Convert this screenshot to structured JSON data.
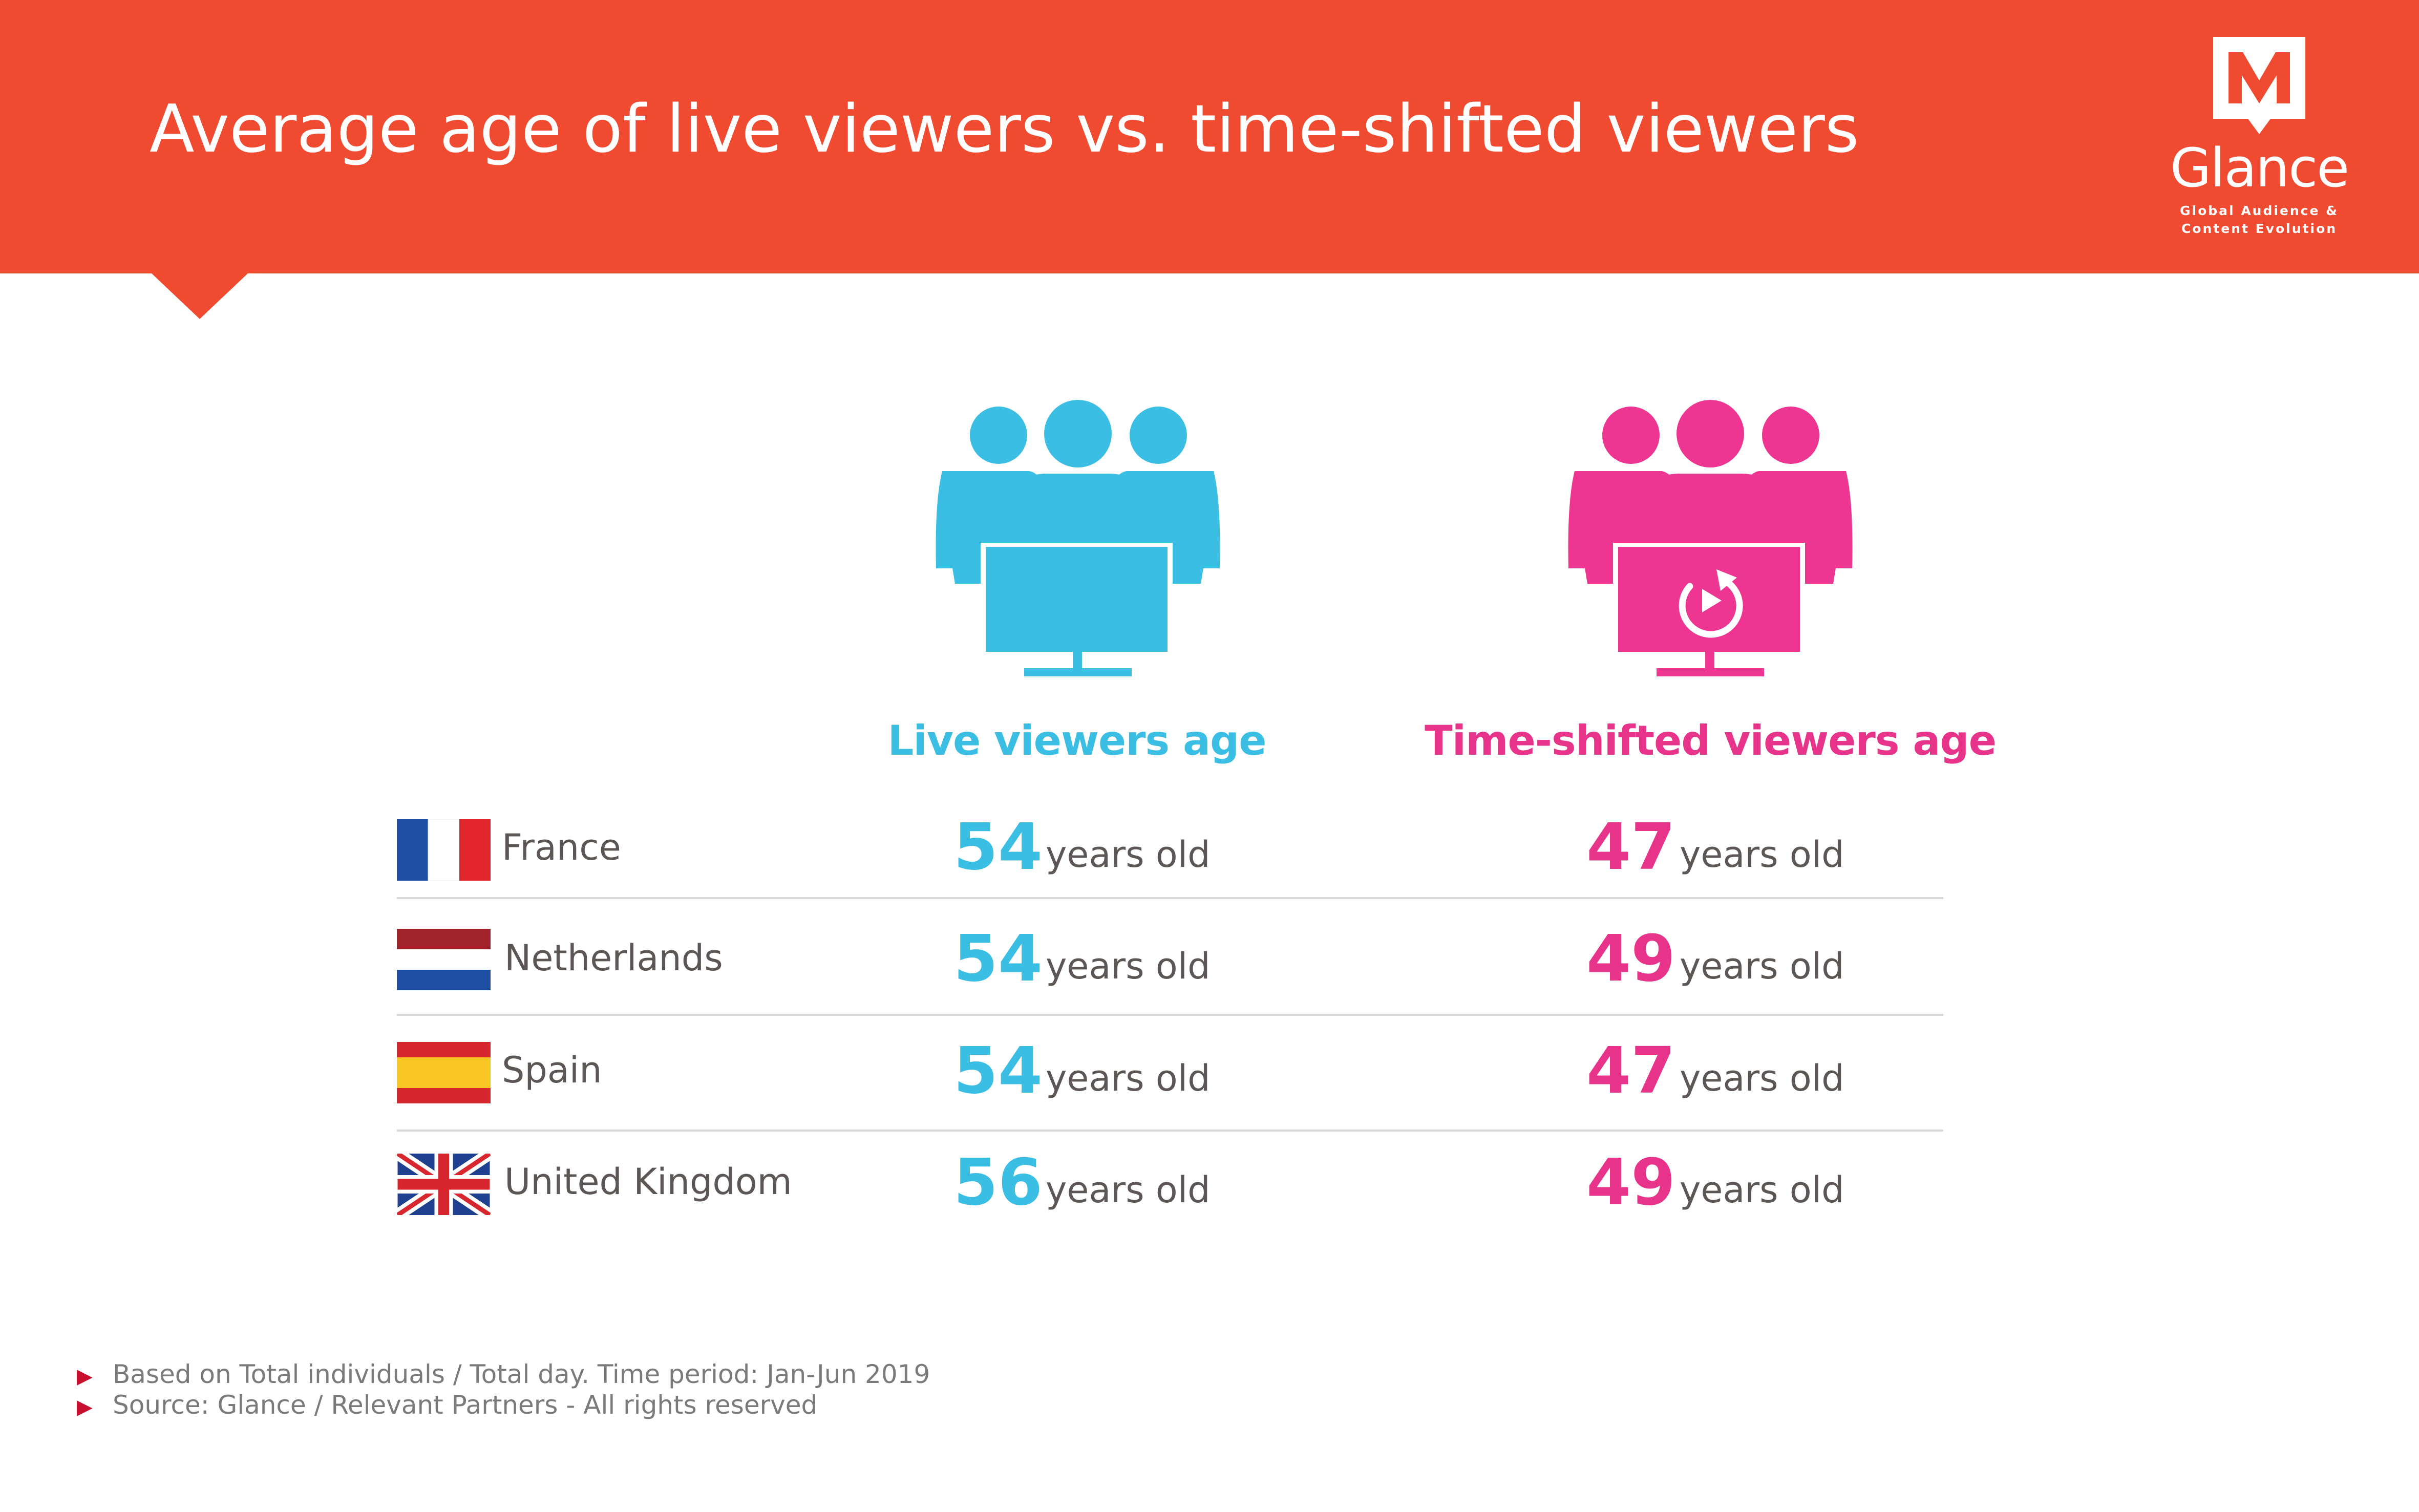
{
  "header": {
    "title": "Average age of live viewers vs. time-shifted viewers",
    "color": "#f04b30"
  },
  "logo": {
    "name": "Glance",
    "tagline_line1": "Global Audience &",
    "tagline_line2": "Content Evolution",
    "icon": "m-marker-icon"
  },
  "chart_data": {
    "type": "table",
    "columns": [
      "Live viewers age",
      "Time-shifted viewers age"
    ],
    "unit": "years old",
    "rows": [
      {
        "country": "France",
        "live": 54,
        "time_shifted": 47,
        "flag": "france-flag-icon"
      },
      {
        "country": "Netherlands",
        "live": 54,
        "time_shifted": 49,
        "flag": "netherlands-flag-icon"
      },
      {
        "country": "Spain",
        "live": 54,
        "time_shifted": 47,
        "flag": "spain-flag-icon"
      },
      {
        "country": "United Kingdom",
        "live": 56,
        "time_shifted": 49,
        "flag": "uk-flag-icon"
      }
    ],
    "colors": {
      "live": "#3bbee3",
      "time_shifted": "#e8338b"
    }
  },
  "icons": {
    "live": "live-viewers-group-icon",
    "time_shifted": "time-shifted-viewers-group-icon"
  },
  "footnotes": [
    "Based on  Total individuals / Total day. Time period: Jan-Jun 2019",
    "Source: Glance / Relevant Partners - All rights reserved"
  ]
}
